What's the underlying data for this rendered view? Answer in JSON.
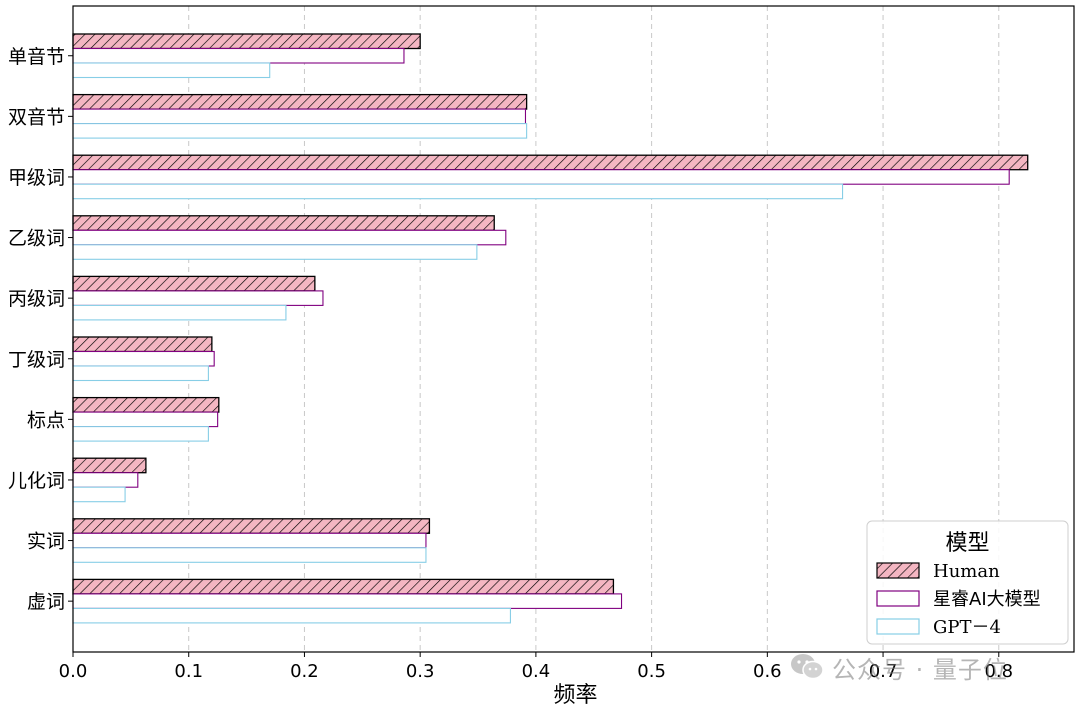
{
  "chart_data": {
    "type": "bar",
    "orientation": "horizontal",
    "categories": [
      "单音节",
      "双音节",
      "甲级词",
      "乙级词",
      "丙级词",
      "丁级词",
      "标点",
      "儿化词",
      "实词",
      "虚词"
    ],
    "series": [
      {
        "name": "Human",
        "values": [
          0.3,
          0.392,
          0.825,
          0.364,
          0.209,
          0.12,
          0.126,
          0.063,
          0.308,
          0.467
        ],
        "color": "#f4b6c2",
        "edge": "#000000",
        "hatch": true
      },
      {
        "name": "星睿AI大模型",
        "values": [
          0.286,
          0.391,
          0.809,
          0.374,
          0.216,
          0.122,
          0.125,
          0.056,
          0.305,
          0.474
        ],
        "color": "#ffffff",
        "edge": "#800080",
        "hatch": false
      },
      {
        "name": "GPT－4",
        "values": [
          0.17,
          0.392,
          0.665,
          0.349,
          0.184,
          0.117,
          0.117,
          0.045,
          0.305,
          0.378
        ],
        "color": "#ffffff",
        "edge": "#87cee6",
        "hatch": false
      }
    ],
    "xlabel": "频率",
    "ylabel": "",
    "xlim": [
      0,
      0.865
    ],
    "xticks": [
      "0.0",
      "0.1",
      "0.2",
      "0.3",
      "0.4",
      "0.5",
      "0.6",
      "0.7",
      "0.8"
    ],
    "grid": "vertical-dashed",
    "legend": {
      "title": "模型",
      "placement": "lower-right"
    }
  },
  "watermark": {
    "text": "公众号 · 量子位",
    "icon": "wechat-icon"
  }
}
